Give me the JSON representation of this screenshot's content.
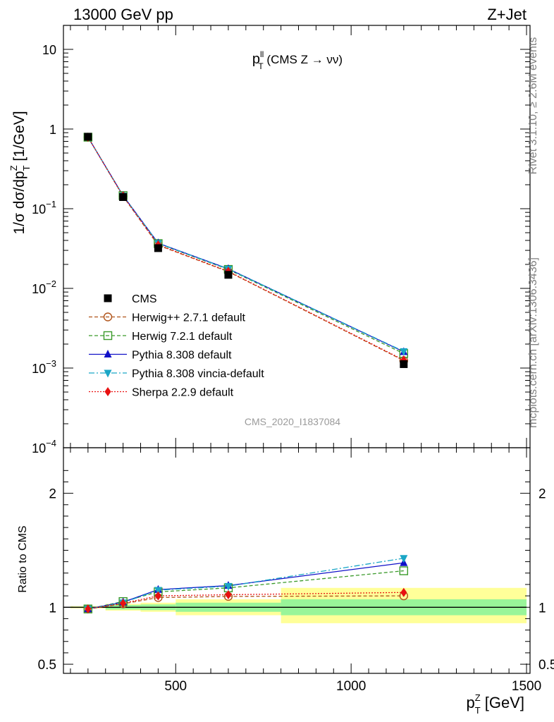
{
  "header": {
    "left": "13000 GeV pp",
    "right": "Z+Jet",
    "side_top": "Rivet 3.1.10, ≥ 2.6M events",
    "side_bottom": "mcplots.cern.ch [arXiv:1306.3436]"
  },
  "chart_data": [
    {
      "type": "line",
      "title_main": "p",
      "title_sup": "ll",
      "title_sub": "T",
      "title_rest": " (CMS Z → νν)",
      "ylabel": "1/σ dσ/dp",
      "ylabel_sup": "Z",
      "ylabel_sub": "T",
      "ylabel_unit": " [1/GeV]",
      "yscale": "log",
      "ylim": [
        0.0001,
        20
      ],
      "xlim": [
        180,
        1510
      ],
      "yticks": [
        {
          "v": 10,
          "base": "10",
          "exp": ""
        },
        {
          "v": 1,
          "base": "1",
          "exp": ""
        },
        {
          "v": 0.1,
          "base": "10",
          "exp": "−1"
        },
        {
          "v": 0.01,
          "base": "10",
          "exp": "−2"
        },
        {
          "v": 0.001,
          "base": "10",
          "exp": "−3"
        },
        {
          "v": 0.0001,
          "base": "10",
          "exp": "−4"
        }
      ],
      "watermark": "CMS_2020_I1837084",
      "x": [
        250,
        350,
        450,
        650,
        1150
      ],
      "data": {
        "name": "CMS",
        "values": [
          0.8,
          0.14,
          0.032,
          0.0148,
          0.00112
        ],
        "color": "#000000"
      },
      "series": [
        {
          "name": "Herwig++ 2.7.1 default",
          "color": "#b0541a",
          "marker": "circle-open",
          "dash": "5,3",
          "values": [
            0.79,
            0.143,
            0.0348,
            0.0162,
            0.00124
          ]
        },
        {
          "name": "Herwig 7.2.1 default",
          "color": "#3a9a2a",
          "marker": "square-open",
          "dash": "5,3",
          "values": [
            0.79,
            0.146,
            0.0365,
            0.0173,
            0.00152
          ]
        },
        {
          "name": "Pythia 8.308 default",
          "color": "#1010c8",
          "marker": "triangle-up",
          "dash": "",
          "values": [
            0.79,
            0.146,
            0.037,
            0.0176,
            0.0016
          ]
        },
        {
          "name": "Pythia 8.308 vincia-default",
          "color": "#1aa6c6",
          "marker": "triangle-down",
          "dash": "8,3,2,3",
          "values": [
            0.79,
            0.145,
            0.0368,
            0.0175,
            0.00162
          ]
        },
        {
          "name": "Sherpa 2.2.9 default",
          "color": "#e81010",
          "marker": "diamond",
          "dash": "2,2",
          "values": [
            0.79,
            0.144,
            0.0352,
            0.0164,
            0.00126
          ]
        }
      ]
    },
    {
      "type": "line",
      "ylabel": "Ratio to CMS",
      "xlabel": "p",
      "xlabel_sup": "Z",
      "xlabel_sub": "T",
      "xlabel_unit": " [GeV]",
      "ylim": [
        0.42,
        2.4
      ],
      "xlim": [
        180,
        1510
      ],
      "yticks": [
        {
          "v": 2,
          "label": "2"
        },
        {
          "v": 1,
          "label": "1"
        },
        {
          "v": 0.5,
          "label": "0.5"
        }
      ],
      "xticks": [
        {
          "v": 500,
          "label": "500"
        },
        {
          "v": 1000,
          "label": "1000"
        },
        {
          "v": 1500,
          "label": "1500"
        }
      ],
      "bands": [
        {
          "x0": 200,
          "x1": 300,
          "stat": [
            0.995,
            1.005
          ],
          "tot": [
            0.99,
            1.01
          ]
        },
        {
          "x0": 300,
          "x1": 400,
          "stat": [
            0.98,
            1.02
          ],
          "tot": [
            0.97,
            1.03
          ]
        },
        {
          "x0": 400,
          "x1": 500,
          "stat": [
            0.975,
            1.025
          ],
          "tot": [
            0.96,
            1.04
          ]
        },
        {
          "x0": 500,
          "x1": 800,
          "stat": [
            0.96,
            1.04
          ],
          "tot": [
            0.93,
            1.07
          ]
        },
        {
          "x0": 800,
          "x1": 1500,
          "stat": [
            0.93,
            1.07
          ],
          "tot": [
            0.86,
            1.17
          ]
        }
      ],
      "x": [
        250,
        350,
        450,
        650,
        1150
      ],
      "series": [
        {
          "name": "Herwig++ 2.7.1 default",
          "values": [
            0.985,
            1.03,
            1.085,
            1.095,
            1.1
          ]
        },
        {
          "name": "Herwig 7.2.1 default",
          "values": [
            0.985,
            1.05,
            1.135,
            1.17,
            1.32
          ]
        },
        {
          "name": "Pythia 8.308 default",
          "values": [
            0.985,
            1.045,
            1.155,
            1.19,
            1.39
          ]
        },
        {
          "name": "Pythia 8.308 vincia-default",
          "values": [
            0.985,
            1.04,
            1.15,
            1.185,
            1.43
          ]
        },
        {
          "name": "Sherpa 2.2.9 default",
          "values": [
            0.985,
            1.035,
            1.1,
            1.11,
            1.13
          ]
        }
      ]
    }
  ]
}
